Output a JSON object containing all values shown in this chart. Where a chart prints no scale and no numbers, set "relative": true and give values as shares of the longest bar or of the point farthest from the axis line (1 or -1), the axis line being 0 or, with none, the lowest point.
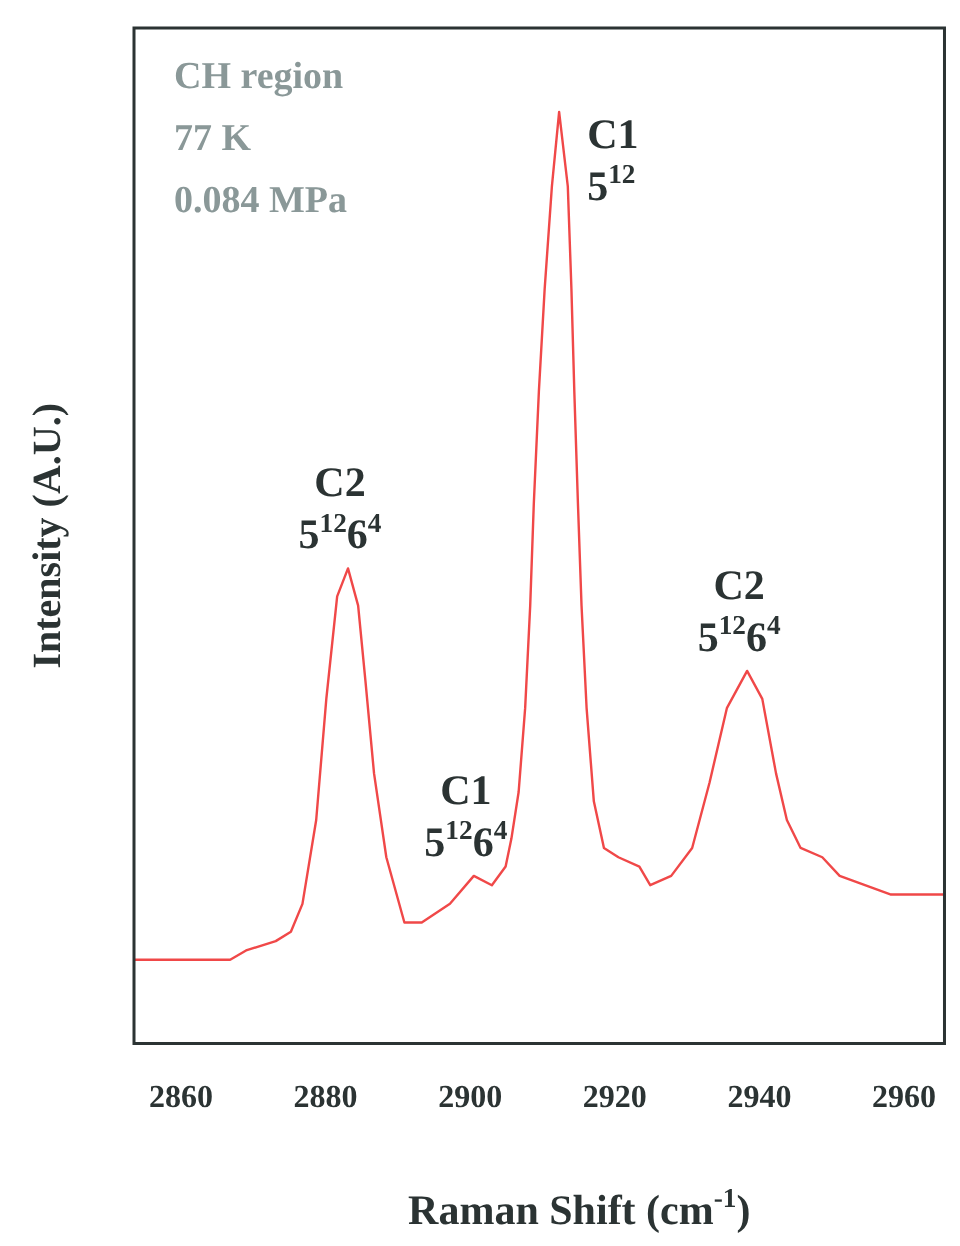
{
  "chart_data": {
    "type": "line",
    "relative": true,
    "xlabel": "Raman Shift (cm$^{-1}$)",
    "ylabel": "Intensity (A.U.)",
    "xlim": [
      2853.5,
      2965.6
    ],
    "xticks": [
      2860,
      2880,
      2900,
      2920,
      2940,
      2960
    ],
    "grid": false,
    "legend": false,
    "marker": "none",
    "line_style": "solid",
    "x": [
      2853.5,
      2856.7,
      2862.2,
      2866.8,
      2869.0,
      2873.1,
      2875.2,
      2876.8,
      2878.7,
      2880.1,
      2881.6,
      2883.1,
      2884.5,
      2885.5,
      2886.7,
      2888.4,
      2890.9,
      2893.3,
      2897.2,
      2900.5,
      2903.0,
      2904.9,
      2905.7,
      2906.7,
      2907.6,
      2908.3,
      2908.8,
      2909.5,
      2910.3,
      2911.3,
      2912.3,
      2913.5,
      2914.0,
      2914.4,
      2914.9,
      2915.4,
      2916.1,
      2917.1,
      2918.5,
      2920.5,
      2923.4,
      2924.9,
      2927.8,
      2930.7,
      2933.1,
      2935.5,
      2938.3,
      2940.4,
      2942.3,
      2943.8,
      2945.7,
      2948.7,
      2951.1,
      2958.2,
      2965.6
    ],
    "series": [
      {
        "color": "#f04848",
        "values": [
          0.09,
          0.09,
          0.09,
          0.09,
          0.1,
          0.11,
          0.12,
          0.15,
          0.24,
          0.37,
          0.48,
          0.51,
          0.47,
          0.39,
          0.29,
          0.2,
          0.13,
          0.13,
          0.15,
          0.18,
          0.17,
          0.19,
          0.22,
          0.27,
          0.36,
          0.47,
          0.58,
          0.7,
          0.81,
          0.92,
          1.0,
          0.92,
          0.81,
          0.7,
          0.58,
          0.47,
          0.36,
          0.26,
          0.21,
          0.2,
          0.19,
          0.17,
          0.18,
          0.21,
          0.28,
          0.36,
          0.4,
          0.37,
          0.29,
          0.24,
          0.21,
          0.2,
          0.18,
          0.16,
          0.16
        ]
      }
    ],
    "annotations": [
      "CH region",
      "77 K",
      "0.084 MPa",
      {
        "text": "C2\n5$^{12}$6$^{4}$",
        "x": 2883.1,
        "y": 0.51
      },
      {
        "text": "C1\n5$^{12}$6$^{4}$",
        "x": 2900.5,
        "y": 0.18
      },
      {
        "text": "C1\n5$^{12}$",
        "x": 2912.3,
        "y": 1.0
      },
      {
        "text": "C2\n5$^{12}$6$^{4}$",
        "x": 2938.3,
        "y": 0.4
      }
    ]
  }
}
